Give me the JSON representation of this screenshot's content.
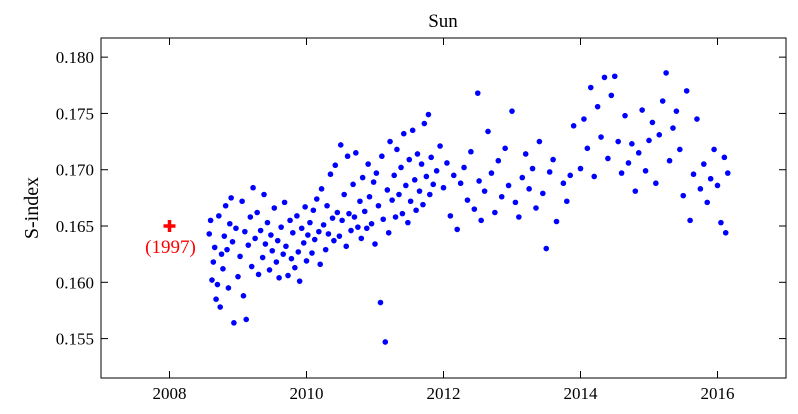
{
  "chart_data": {
    "type": "scatter",
    "title": "Sun",
    "xlabel": "",
    "ylabel": "S-index",
    "xlim": [
      2007.0,
      2017.0
    ],
    "ylim": [
      0.1515,
      0.1817
    ],
    "xticks": [
      "2008",
      "2010",
      "2012",
      "2014",
      "2016"
    ],
    "yticks": [
      "0.155",
      "0.160",
      "0.165",
      "0.170",
      "0.175",
      "0.180"
    ],
    "grid": false,
    "legend": "none",
    "colors": {
      "series": "#0000ff",
      "marker_1997": "#ff0000"
    },
    "highlight_point": {
      "x": 2008.0,
      "y": 0.165,
      "marker": "plus",
      "label": "(1997)"
    },
    "series": [
      {
        "points": [
          [
            2008.58,
            0.1643
          ],
          [
            2008.6,
            0.1655
          ],
          [
            2008.62,
            0.1602
          ],
          [
            2008.64,
            0.1618
          ],
          [
            2008.66,
            0.1631
          ],
          [
            2008.68,
            0.1585
          ],
          [
            2008.7,
            0.1598
          ],
          [
            2008.72,
            0.1659
          ],
          [
            2008.74,
            0.1578
          ],
          [
            2008.76,
            0.1625
          ],
          [
            2008.78,
            0.1612
          ],
          [
            2008.8,
            0.1641
          ],
          [
            2008.82,
            0.1668
          ],
          [
            2008.84,
            0.1629
          ],
          [
            2008.86,
            0.1595
          ],
          [
            2008.88,
            0.1652
          ],
          [
            2008.9,
            0.1675
          ],
          [
            2008.92,
            0.1636
          ],
          [
            2008.94,
            0.1564
          ],
          [
            2008.97,
            0.1648
          ],
          [
            2009.0,
            0.1605
          ],
          [
            2009.03,
            0.1623
          ],
          [
            2009.06,
            0.1672
          ],
          [
            2009.08,
            0.1588
          ],
          [
            2009.1,
            0.1645
          ],
          [
            2009.12,
            0.1567
          ],
          [
            2009.15,
            0.1633
          ],
          [
            2009.18,
            0.1658
          ],
          [
            2009.2,
            0.1614
          ],
          [
            2009.22,
            0.1684
          ],
          [
            2009.25,
            0.1639
          ],
          [
            2009.28,
            0.1662
          ],
          [
            2009.3,
            0.1607
          ],
          [
            2009.33,
            0.1646
          ],
          [
            2009.36,
            0.1622
          ],
          [
            2009.38,
            0.1678
          ],
          [
            2009.4,
            0.1634
          ],
          [
            2009.43,
            0.1653
          ],
          [
            2009.46,
            0.1611
          ],
          [
            2009.48,
            0.1642
          ],
          [
            2009.5,
            0.1628
          ],
          [
            2009.53,
            0.1666
          ],
          [
            2009.56,
            0.1618
          ],
          [
            2009.58,
            0.1637
          ],
          [
            2009.6,
            0.1604
          ],
          [
            2009.63,
            0.1649
          ],
          [
            2009.66,
            0.1625
          ],
          [
            2009.68,
            0.1671
          ],
          [
            2009.7,
            0.1632
          ],
          [
            2009.73,
            0.1606
          ],
          [
            2009.76,
            0.1655
          ],
          [
            2009.78,
            0.1621
          ],
          [
            2009.8,
            0.1644
          ],
          [
            2009.83,
            0.1613
          ],
          [
            2009.86,
            0.1659
          ],
          [
            2009.88,
            0.1627
          ],
          [
            2009.9,
            0.1601
          ],
          [
            2009.93,
            0.1648
          ],
          [
            2009.96,
            0.1635
          ],
          [
            2009.98,
            0.1667
          ],
          [
            2010.0,
            0.1619
          ],
          [
            2010.02,
            0.1642
          ],
          [
            2010.05,
            0.1653
          ],
          [
            2010.08,
            0.1626
          ],
          [
            2010.1,
            0.1664
          ],
          [
            2010.12,
            0.1638
          ],
          [
            2010.15,
            0.1674
          ],
          [
            2010.18,
            0.1645
          ],
          [
            2010.2,
            0.1616
          ],
          [
            2010.22,
            0.1683
          ],
          [
            2010.25,
            0.1651
          ],
          [
            2010.28,
            0.1629
          ],
          [
            2010.3,
            0.1668
          ],
          [
            2010.32,
            0.1643
          ],
          [
            2010.35,
            0.1696
          ],
          [
            2010.38,
            0.1657
          ],
          [
            2010.4,
            0.1637
          ],
          [
            2010.42,
            0.1704
          ],
          [
            2010.45,
            0.1662
          ],
          [
            2010.48,
            0.1641
          ],
          [
            2010.5,
            0.1722
          ],
          [
            2010.52,
            0.1655
          ],
          [
            2010.55,
            0.1678
          ],
          [
            2010.58,
            0.1632
          ],
          [
            2010.6,
            0.1712
          ],
          [
            2010.62,
            0.1661
          ],
          [
            2010.65,
            0.1646
          ],
          [
            2010.68,
            0.1687
          ],
          [
            2010.7,
            0.1658
          ],
          [
            2010.72,
            0.1715
          ],
          [
            2010.75,
            0.1649
          ],
          [
            2010.78,
            0.1672
          ],
          [
            2010.8,
            0.1639
          ],
          [
            2010.82,
            0.1693
          ],
          [
            2010.85,
            0.1663
          ],
          [
            2010.88,
            0.1648
          ],
          [
            2010.9,
            0.1705
          ],
          [
            2010.92,
            0.1676
          ],
          [
            2010.95,
            0.1652
          ],
          [
            2010.98,
            0.1689
          ],
          [
            2011.0,
            0.1634
          ],
          [
            2011.02,
            0.1697
          ],
          [
            2011.05,
            0.1668
          ],
          [
            2011.08,
            0.1582
          ],
          [
            2011.1,
            0.1712
          ],
          [
            2011.12,
            0.1656
          ],
          [
            2011.15,
            0.1547
          ],
          [
            2011.18,
            0.1682
          ],
          [
            2011.2,
            0.1644
          ],
          [
            2011.22,
            0.1725
          ],
          [
            2011.25,
            0.1673
          ],
          [
            2011.28,
            0.1695
          ],
          [
            2011.3,
            0.1658
          ],
          [
            2011.32,
            0.1718
          ],
          [
            2011.35,
            0.1678
          ],
          [
            2011.38,
            0.1702
          ],
          [
            2011.4,
            0.1661
          ],
          [
            2011.42,
            0.1732
          ],
          [
            2011.45,
            0.1686
          ],
          [
            2011.48,
            0.1653
          ],
          [
            2011.5,
            0.1709
          ],
          [
            2011.52,
            0.1672
          ],
          [
            2011.55,
            0.1735
          ],
          [
            2011.58,
            0.1691
          ],
          [
            2011.6,
            0.1664
          ],
          [
            2011.62,
            0.1714
          ],
          [
            2011.65,
            0.1681
          ],
          [
            2011.68,
            0.1705
          ],
          [
            2011.7,
            0.1669
          ],
          [
            2011.72,
            0.1741
          ],
          [
            2011.75,
            0.1694
          ],
          [
            2011.78,
            0.1749
          ],
          [
            2011.8,
            0.1678
          ],
          [
            2011.82,
            0.1711
          ],
          [
            2011.85,
            0.1687
          ],
          [
            2011.9,
            0.1699
          ],
          [
            2011.95,
            0.1721
          ],
          [
            2012.0,
            0.1684
          ],
          [
            2012.05,
            0.1706
          ],
          [
            2012.1,
            0.1659
          ],
          [
            2012.15,
            0.1695
          ],
          [
            2012.2,
            0.1647
          ],
          [
            2012.25,
            0.1688
          ],
          [
            2012.3,
            0.1702
          ],
          [
            2012.35,
            0.1673
          ],
          [
            2012.4,
            0.1716
          ],
          [
            2012.45,
            0.1665
          ],
          [
            2012.5,
            0.1768
          ],
          [
            2012.52,
            0.169
          ],
          [
            2012.55,
            0.1655
          ],
          [
            2012.6,
            0.1681
          ],
          [
            2012.65,
            0.1734
          ],
          [
            2012.7,
            0.1697
          ],
          [
            2012.75,
            0.1662
          ],
          [
            2012.8,
            0.1708
          ],
          [
            2012.85,
            0.1676
          ],
          [
            2012.9,
            0.1719
          ],
          [
            2012.95,
            0.1686
          ],
          [
            2013.0,
            0.1752
          ],
          [
            2013.05,
            0.1671
          ],
          [
            2013.1,
            0.1658
          ],
          [
            2013.15,
            0.1693
          ],
          [
            2013.2,
            0.1714
          ],
          [
            2013.25,
            0.1683
          ],
          [
            2013.3,
            0.1701
          ],
          [
            2013.35,
            0.1666
          ],
          [
            2013.4,
            0.1725
          ],
          [
            2013.45,
            0.1679
          ],
          [
            2013.5,
            0.163
          ],
          [
            2013.55,
            0.1698
          ],
          [
            2013.6,
            0.1709
          ],
          [
            2013.65,
            0.1654
          ],
          [
            2013.75,
            0.1688
          ],
          [
            2013.8,
            0.1672
          ],
          [
            2013.85,
            0.1695
          ],
          [
            2013.9,
            0.1739
          ],
          [
            2014.0,
            0.1701
          ],
          [
            2014.05,
            0.1745
          ],
          [
            2014.1,
            0.1719
          ],
          [
            2014.15,
            0.1773
          ],
          [
            2014.2,
            0.1694
          ],
          [
            2014.25,
            0.1756
          ],
          [
            2014.3,
            0.1729
          ],
          [
            2014.35,
            0.1782
          ],
          [
            2014.4,
            0.171
          ],
          [
            2014.45,
            0.1766
          ],
          [
            2014.5,
            0.1783
          ],
          [
            2014.55,
            0.1725
          ],
          [
            2014.6,
            0.1697
          ],
          [
            2014.65,
            0.1748
          ],
          [
            2014.7,
            0.1706
          ],
          [
            2014.75,
            0.1723
          ],
          [
            2014.8,
            0.1681
          ],
          [
            2014.85,
            0.1715
          ],
          [
            2014.9,
            0.1753
          ],
          [
            2014.95,
            0.1699
          ],
          [
            2015.0,
            0.1726
          ],
          [
            2015.05,
            0.1742
          ],
          [
            2015.1,
            0.1688
          ],
          [
            2015.15,
            0.1731
          ],
          [
            2015.2,
            0.1761
          ],
          [
            2015.25,
            0.1786
          ],
          [
            2015.3,
            0.1708
          ],
          [
            2015.35,
            0.1737
          ],
          [
            2015.4,
            0.1752
          ],
          [
            2015.45,
            0.1718
          ],
          [
            2015.5,
            0.1677
          ],
          [
            2015.55,
            0.177
          ],
          [
            2015.6,
            0.1655
          ],
          [
            2015.65,
            0.1696
          ],
          [
            2015.7,
            0.1745
          ],
          [
            2015.75,
            0.1683
          ],
          [
            2015.8,
            0.1705
          ],
          [
            2015.85,
            0.1671
          ],
          [
            2015.9,
            0.1692
          ],
          [
            2015.95,
            0.1718
          ],
          [
            2016.0,
            0.1686
          ],
          [
            2016.05,
            0.1653
          ],
          [
            2016.1,
            0.1711
          ],
          [
            2016.12,
            0.1644
          ],
          [
            2016.15,
            0.1697
          ]
        ]
      }
    ]
  }
}
